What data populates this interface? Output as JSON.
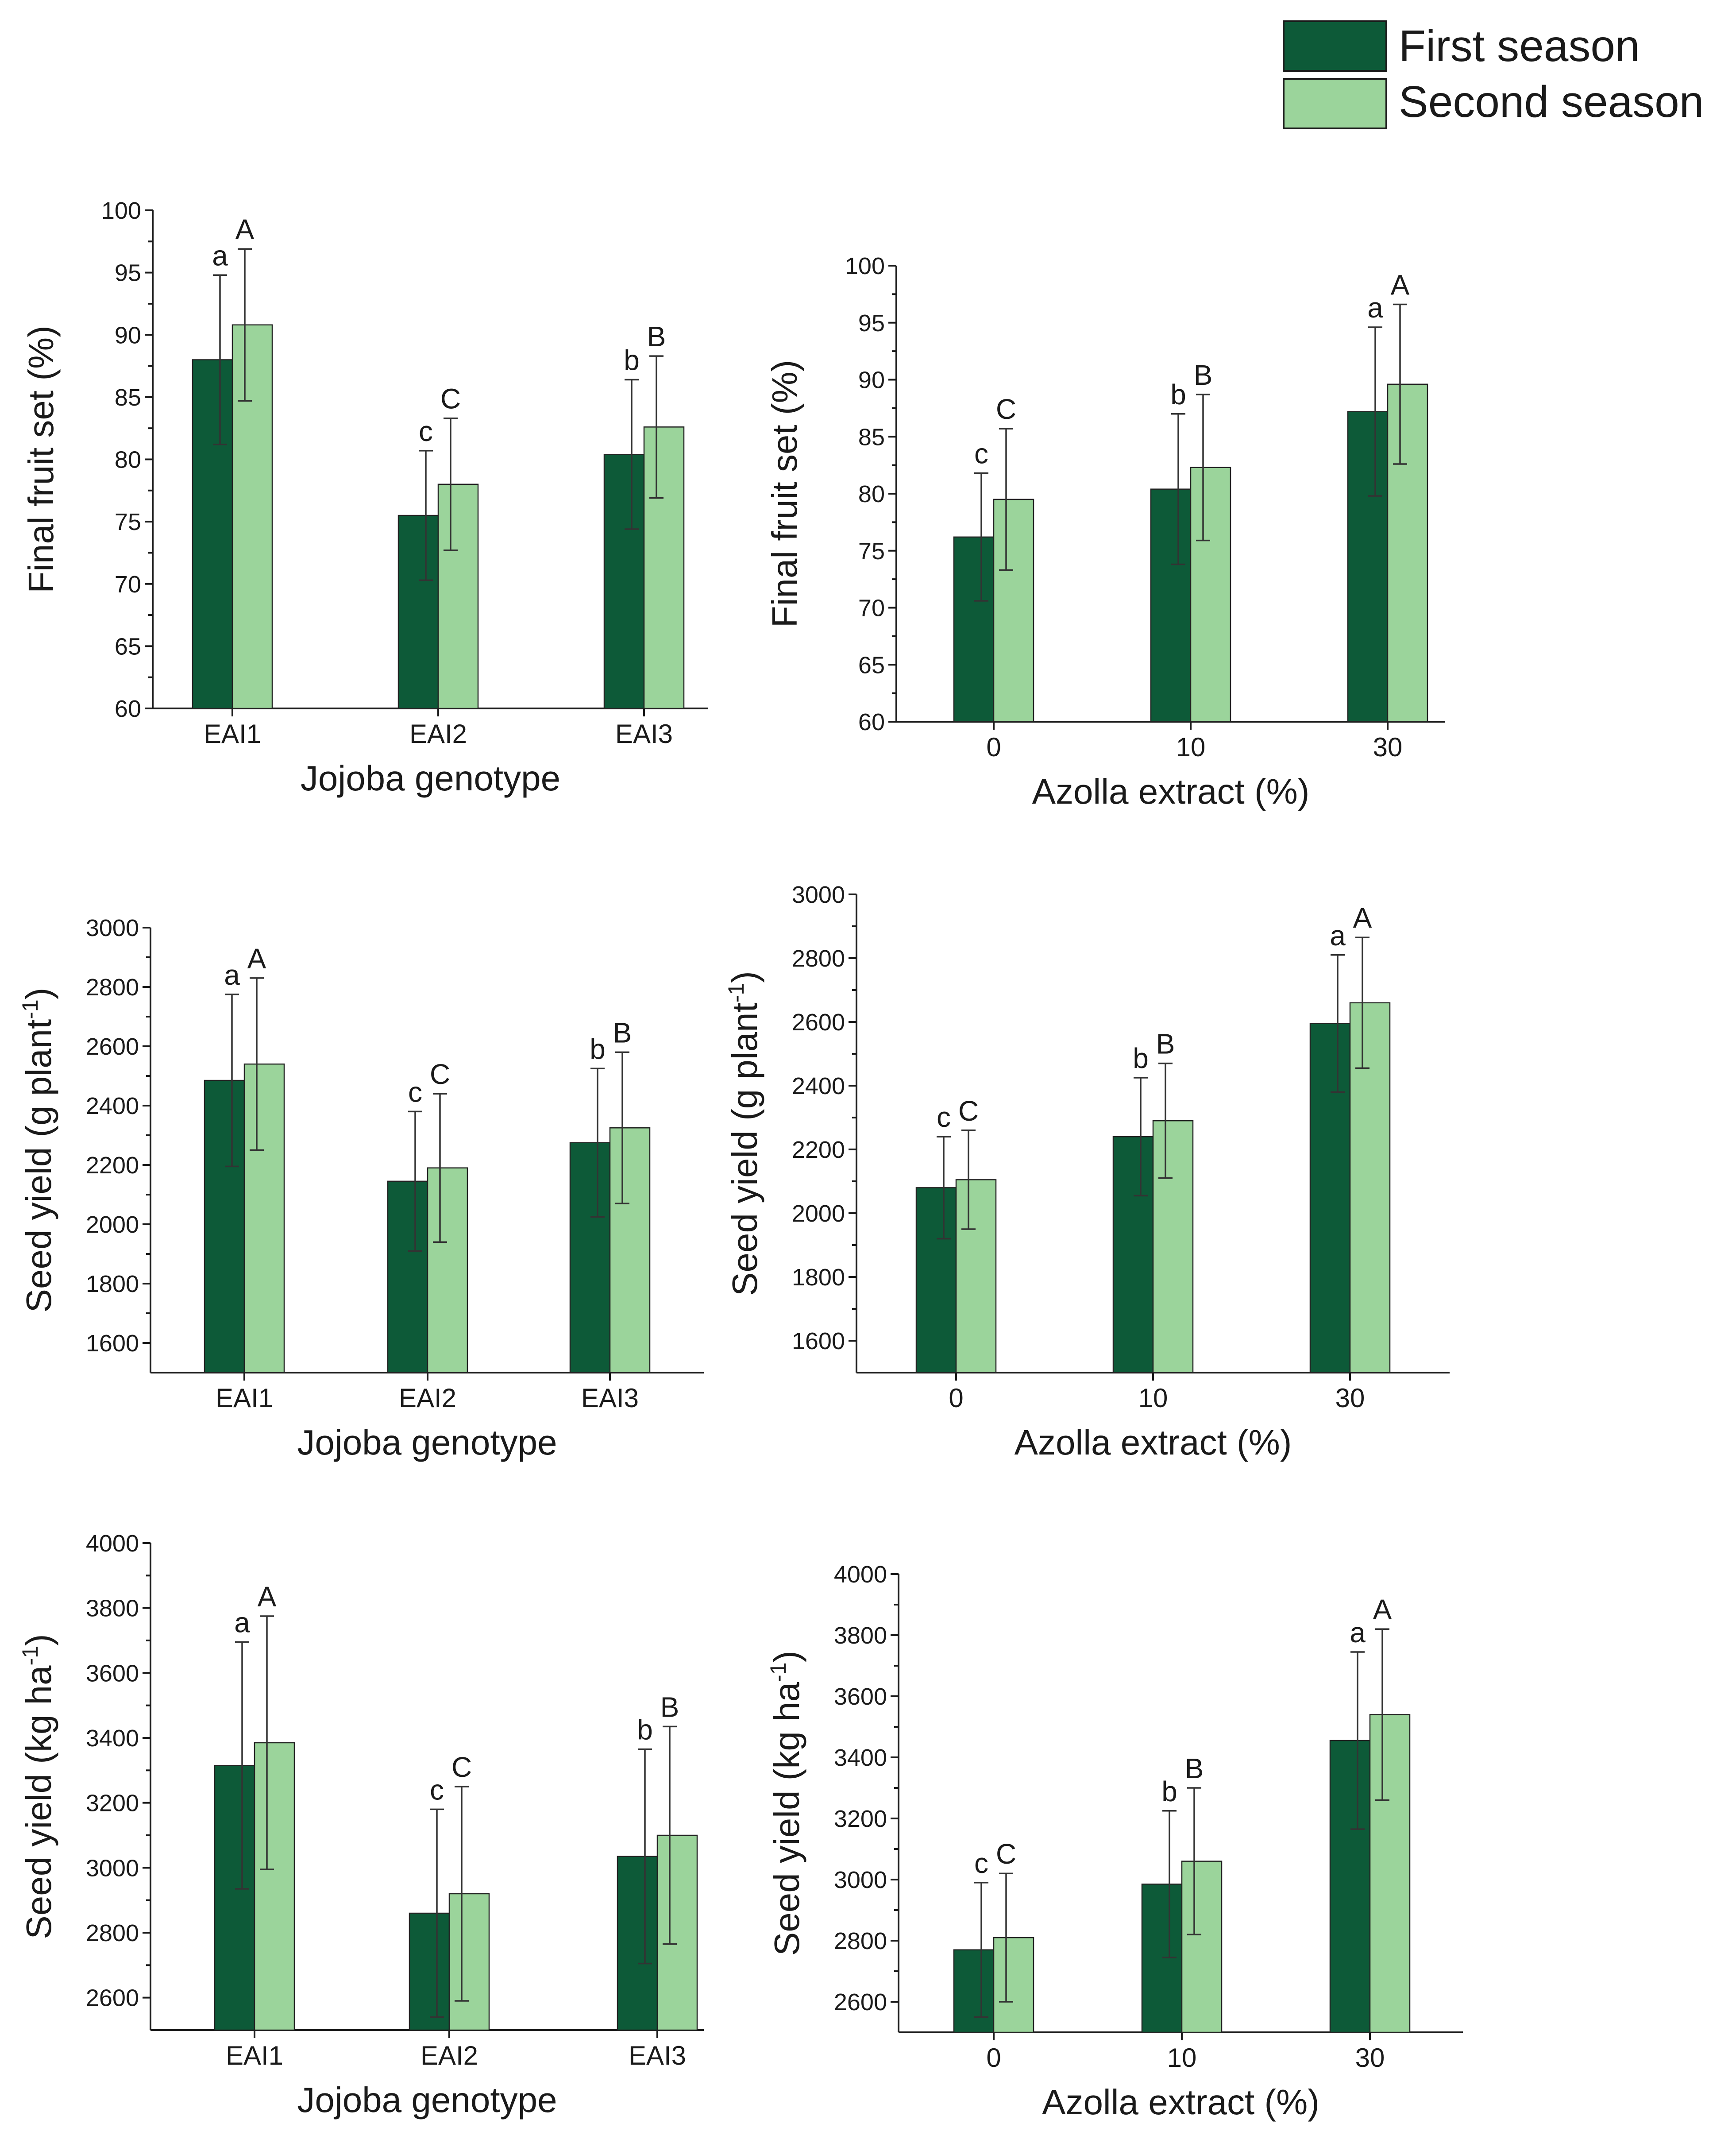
{
  "legend": {
    "items": [
      {
        "label": "First season",
        "color": "#0d5a38"
      },
      {
        "label": "Second season",
        "color": "#9bd49b"
      }
    ]
  },
  "chart_data": [
    {
      "type": "bar",
      "id": "fruitset-genotype",
      "categories": [
        "EAI1",
        "EAI2",
        "EAI3"
      ],
      "xlabel": "Jojoba genotype",
      "ylabel": "Final fruit set (%)",
      "ylim": [
        60,
        100
      ],
      "yticks": [
        60,
        65,
        70,
        75,
        80,
        85,
        90,
        95,
        100
      ],
      "series": [
        {
          "name": "First season",
          "values": [
            88.0,
            75.5,
            80.4
          ],
          "errors": [
            6.8,
            5.2,
            6.0
          ],
          "letters": [
            "a",
            "c",
            "b"
          ]
        },
        {
          "name": "Second season",
          "values": [
            90.8,
            78.0,
            82.6
          ],
          "errors": [
            6.1,
            5.3,
            5.7
          ],
          "letters": [
            "A",
            "C",
            "B"
          ]
        }
      ]
    },
    {
      "type": "bar",
      "id": "fruitset-azolla",
      "categories": [
        "0",
        "10",
        "30"
      ],
      "xlabel": "Azolla extract (%)",
      "ylabel": "Final fruit set (%)",
      "ylim": [
        60,
        100
      ],
      "yticks": [
        60,
        65,
        70,
        75,
        80,
        85,
        90,
        95,
        100
      ],
      "series": [
        {
          "name": "First season",
          "values": [
            76.2,
            80.4,
            87.2
          ],
          "errors": [
            5.6,
            6.6,
            7.4
          ],
          "letters": [
            "c",
            "b",
            "a"
          ]
        },
        {
          "name": "Second season",
          "values": [
            79.5,
            82.3,
            89.6
          ],
          "errors": [
            6.2,
            6.4,
            7.0
          ],
          "letters": [
            "C",
            "B",
            "A"
          ]
        }
      ]
    },
    {
      "type": "bar",
      "id": "seedyield-plant-genotype",
      "categories": [
        "EAI1",
        "EAI2",
        "EAI3"
      ],
      "xlabel": "Jojoba genotype",
      "ylabel": "Seed yield (g plant",
      "ylabel_sup": "-1",
      "ylabel_end": ")",
      "ylim": [
        1500,
        3000
      ],
      "yticks": [
        1600,
        1800,
        2000,
        2200,
        2400,
        2600,
        2800,
        3000
      ],
      "series": [
        {
          "name": "First season",
          "values": [
            2485,
            2145,
            2275
          ],
          "errors": [
            290,
            235,
            250
          ],
          "letters": [
            "a",
            "c",
            "b"
          ]
        },
        {
          "name": "Second season",
          "values": [
            2540,
            2190,
            2325
          ],
          "errors": [
            290,
            250,
            255
          ],
          "letters": [
            "A",
            "C",
            "B"
          ]
        }
      ]
    },
    {
      "type": "bar",
      "id": "seedyield-plant-azolla",
      "categories": [
        "0",
        "10",
        "30"
      ],
      "xlabel": "Azolla extract (%)",
      "ylabel": "Seed yield (g plant",
      "ylabel_sup": "-1",
      "ylabel_end": ")",
      "ylim": [
        1500,
        3000
      ],
      "yticks": [
        1600,
        1800,
        2000,
        2200,
        2400,
        2600,
        2800,
        3000
      ],
      "series": [
        {
          "name": "First season",
          "values": [
            2080,
            2240,
            2595
          ],
          "errors": [
            160,
            185,
            215
          ],
          "letters": [
            "c",
            "b",
            "a"
          ]
        },
        {
          "name": "Second season",
          "values": [
            2105,
            2290,
            2660
          ],
          "errors": [
            155,
            180,
            205
          ],
          "letters": [
            "C",
            "B",
            "A"
          ]
        }
      ]
    },
    {
      "type": "bar",
      "id": "seedyield-ha-genotype",
      "categories": [
        "EAI1",
        "EAI2",
        "EAI3"
      ],
      "xlabel": "Jojoba genotype",
      "ylabel": "Seed yield (kg ha",
      "ylabel_sup": "-1",
      "ylabel_end": ")",
      "ylim": [
        2500,
        4000
      ],
      "yticks": [
        2600,
        2800,
        3000,
        3200,
        3400,
        3600,
        3800,
        4000
      ],
      "series": [
        {
          "name": "First season",
          "values": [
            3315,
            2860,
            3035
          ],
          "errors": [
            380,
            320,
            330
          ],
          "letters": [
            "a",
            "c",
            "b"
          ]
        },
        {
          "name": "Second season",
          "values": [
            3385,
            2920,
            3100
          ],
          "errors": [
            390,
            330,
            335
          ],
          "letters": [
            "A",
            "C",
            "B"
          ]
        }
      ]
    },
    {
      "type": "bar",
      "id": "seedyield-ha-azolla",
      "categories": [
        "0",
        "10",
        "30"
      ],
      "xlabel": "Azolla extract (%)",
      "ylabel": "Seed yield (kg ha",
      "ylabel_sup": "-1",
      "ylabel_end": ")",
      "ylim": [
        2500,
        4000
      ],
      "yticks": [
        2600,
        2800,
        3000,
        3200,
        3400,
        3600,
        3800,
        4000
      ],
      "series": [
        {
          "name": "First season",
          "values": [
            2770,
            2985,
            3455
          ],
          "errors": [
            220,
            240,
            290
          ],
          "letters": [
            "c",
            "b",
            "a"
          ]
        },
        {
          "name": "Second season",
          "values": [
            2810,
            3060,
            3540
          ],
          "errors": [
            210,
            240,
            280
          ],
          "letters": [
            "C",
            "B",
            "A"
          ]
        }
      ]
    }
  ]
}
